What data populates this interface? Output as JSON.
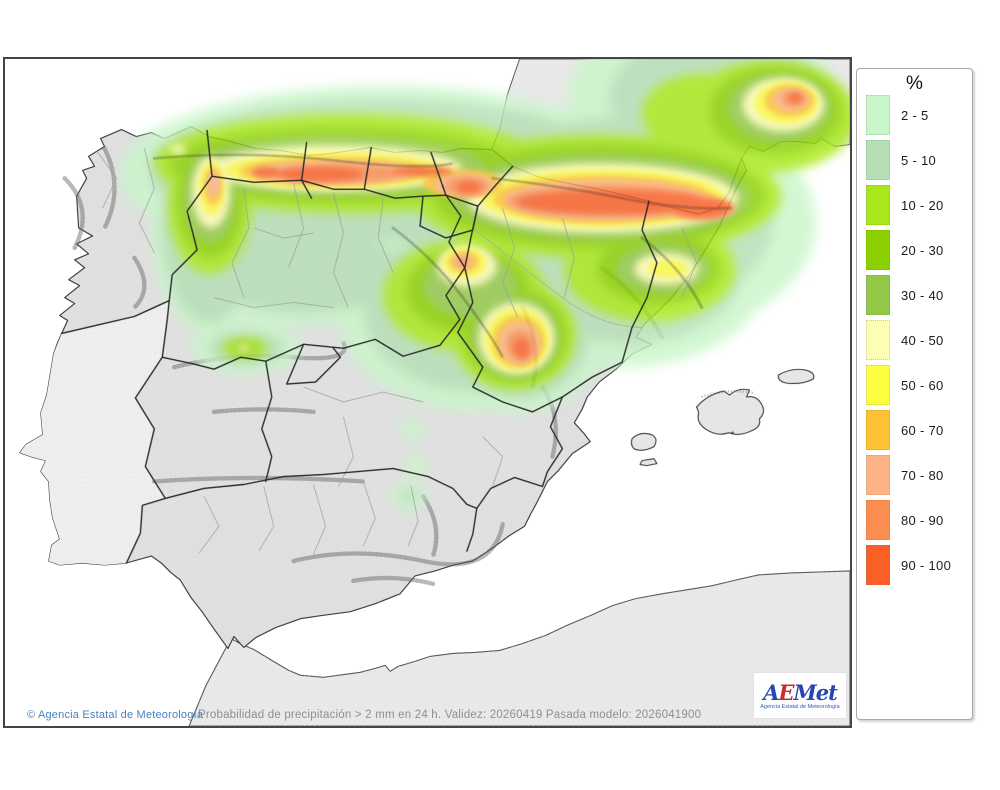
{
  "legend": {
    "title": "%",
    "items": [
      {
        "label": "2 - 5",
        "color": "#c9f6c9"
      },
      {
        "label": "5 - 10",
        "color": "#b5dfb5"
      },
      {
        "label": "10 - 20",
        "color": "#a8e818"
      },
      {
        "label": "20 - 30",
        "color": "#8ad000"
      },
      {
        "label": "30 - 40",
        "color": "#92c846"
      },
      {
        "label": "40 - 50",
        "color": "#fdfdb5"
      },
      {
        "label": "50 - 60",
        "color": "#fdfd42"
      },
      {
        "label": "60 - 70",
        "color": "#fdc233"
      },
      {
        "label": "70 - 80",
        "color": "#fdb385"
      },
      {
        "label": "80 - 90",
        "color": "#fc8d50"
      },
      {
        "label": "90 - 100",
        "color": "#fb5f26"
      }
    ]
  },
  "footer": {
    "copyright": "© Agencia Estatal de Meteorología",
    "info": "Probabilidad de precipitación > 2 mm en 24 h. Validez: 20260419 Pasada modelo: 2026041900"
  },
  "logo": {
    "a": "A",
    "e": "E",
    "met": "Met",
    "subtitle": "Agencia Estatal de Meteorología"
  },
  "map": {
    "region": "Iberian Peninsula and Balearic Islands",
    "sea_color": "#ffffff",
    "nodata_land_color": "#e9e9e9",
    "spain_land_color": "#e4e4e4",
    "border_color": "#2b2b2b",
    "province_border_color": "#9c9c9c"
  }
}
